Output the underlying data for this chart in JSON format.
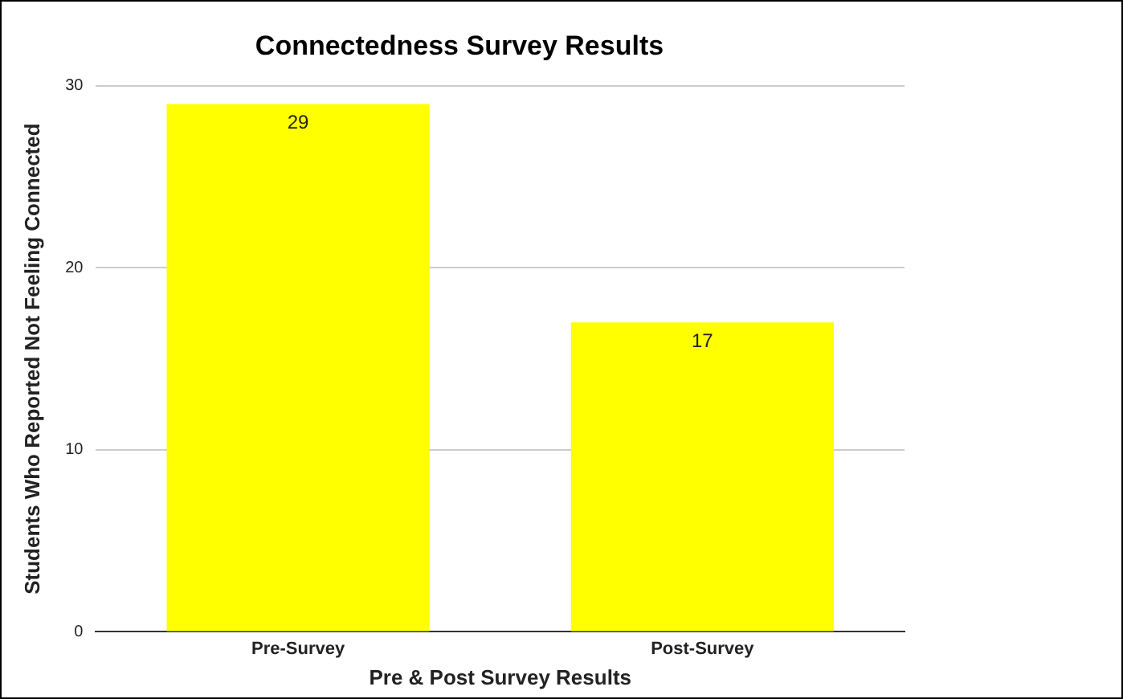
{
  "chart_data": {
    "type": "bar",
    "title": "Connectedness Survey Results",
    "xlabel": "Pre & Post Survey Results",
    "ylabel": "Students Who Reported Not Feeling Connected",
    "categories": [
      "Pre-Survey",
      "Post-Survey"
    ],
    "values": [
      29,
      17
    ],
    "color": "#ffff00",
    "ylim": [
      0,
      30
    ],
    "yticks": [
      0,
      10,
      20,
      30
    ],
    "grid": "y",
    "data_labels": true,
    "legend": false
  }
}
